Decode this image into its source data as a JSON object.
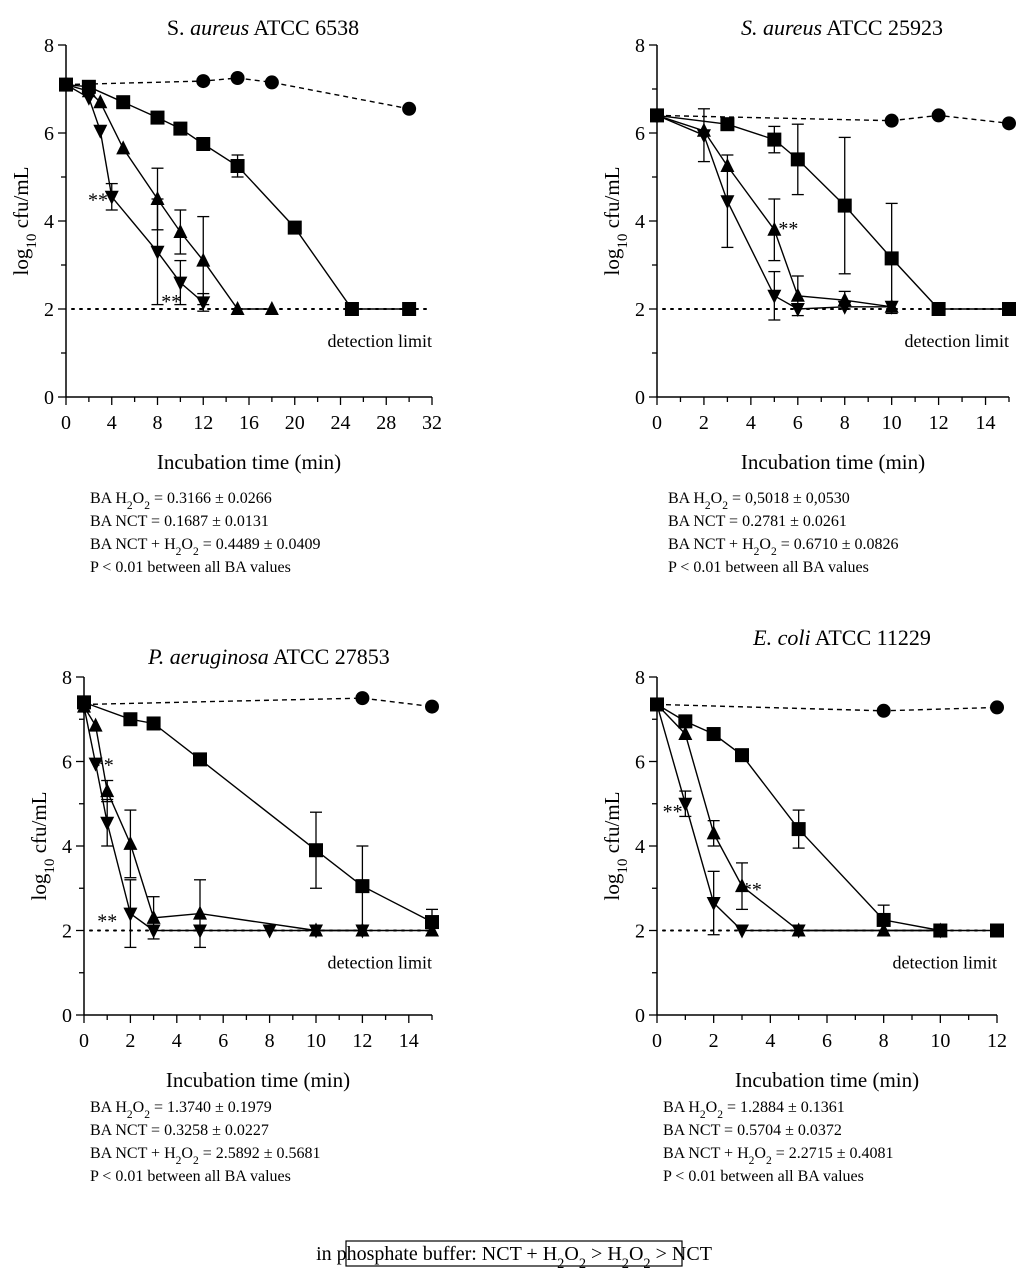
{
  "chart_data": [
    {
      "type": "line",
      "title_parts": [
        {
          "text": "S. ",
          "italic": false
        },
        {
          "text": "aureus",
          "italic": true
        },
        {
          "text": " ATCC 6538",
          "italic": false
        }
      ],
      "xlabel": "Incubation time (min)",
      "ylabel": "log10 cfu/mL",
      "xlim": [
        0,
        32
      ],
      "ylim": [
        0,
        8
      ],
      "xticks": [
        0,
        4,
        8,
        12,
        16,
        20,
        24,
        28,
        32
      ],
      "yticks": [
        0,
        2,
        4,
        6,
        8
      ],
      "detection_limit": 2,
      "detection_label": "detection limit",
      "series": [
        {
          "marker": "circle",
          "dashed": true,
          "points": [
            {
              "x": 0,
              "y": 7.1
            },
            {
              "x": 12,
              "y": 7.18
            },
            {
              "x": 15,
              "y": 7.25
            },
            {
              "x": 18,
              "y": 7.15
            },
            {
              "x": 30,
              "y": 6.55
            }
          ]
        },
        {
          "marker": "square",
          "dashed": false,
          "points": [
            {
              "x": 0,
              "y": 7.1
            },
            {
              "x": 2,
              "y": 7.05
            },
            {
              "x": 5,
              "y": 6.7
            },
            {
              "x": 8,
              "y": 6.35
            },
            {
              "x": 10,
              "y": 6.1
            },
            {
              "x": 12,
              "y": 5.75
            },
            {
              "x": 15,
              "y": 5.25,
              "err": 0.25
            },
            {
              "x": 20,
              "y": 3.85
            },
            {
              "x": 25,
              "y": 2.0
            },
            {
              "x": 30,
              "y": 2.0
            }
          ]
        },
        {
          "marker": "triangle-up",
          "dashed": false,
          "points": [
            {
              "x": 0,
              "y": 7.1
            },
            {
              "x": 2,
              "y": 6.95
            },
            {
              "x": 3,
              "y": 6.7
            },
            {
              "x": 5,
              "y": 5.65
            },
            {
              "x": 8,
              "y": 4.5,
              "err": 0.7
            },
            {
              "x": 10,
              "y": 3.75,
              "err": 0.5
            },
            {
              "x": 12,
              "y": 3.1,
              "err": 1.0
            },
            {
              "x": 15,
              "y": 2.0
            },
            {
              "x": 18,
              "y": 2.0
            }
          ]
        },
        {
          "marker": "triangle-down",
          "dashed": false,
          "points": [
            {
              "x": 0,
              "y": 7.1
            },
            {
              "x": 2,
              "y": 6.8
            },
            {
              "x": 3,
              "y": 6.05
            },
            {
              "x": 4,
              "y": 4.55,
              "err": 0.3
            },
            {
              "x": 8,
              "y": 3.3,
              "err": 1.2
            },
            {
              "x": 10,
              "y": 2.6,
              "err": 0.5
            },
            {
              "x": 12,
              "y": 2.15,
              "err": 0.2
            }
          ]
        }
      ],
      "annotations": [
        {
          "text": "**",
          "x": 2.8,
          "y": 4.6
        },
        {
          "text": "**",
          "x": 9.2,
          "y": 2.3
        }
      ],
      "stats": [
        {
          "label": "BA H2O2",
          "value": "0.3166 ± 0.0266"
        },
        {
          "label": "BA NCT",
          "value": "0.1687 ± 0.0131"
        },
        {
          "label": "BA NCT + H2O2",
          "value": "0.4489 ± 0.0409"
        },
        {
          "label": "P < 0.01 between all BA values",
          "value": ""
        }
      ]
    },
    {
      "type": "line",
      "title_parts": [
        {
          "text": "S. aureus",
          "italic": true
        },
        {
          "text": " ATCC 25923",
          "italic": false
        }
      ],
      "xlabel": "Incubation time (min)",
      "ylabel": "log10 cfu/mL",
      "xlim": [
        0,
        15
      ],
      "ylim": [
        0,
        8
      ],
      "xticks": [
        0,
        2,
        4,
        6,
        8,
        10,
        12,
        14
      ],
      "yticks": [
        0,
        2,
        4,
        6,
        8
      ],
      "detection_limit": 2,
      "detection_label": "detection limit",
      "series": [
        {
          "marker": "circle",
          "dashed": true,
          "points": [
            {
              "x": 0,
              "y": 6.4
            },
            {
              "x": 10,
              "y": 6.28
            },
            {
              "x": 12,
              "y": 6.4
            },
            {
              "x": 15,
              "y": 6.22
            }
          ]
        },
        {
          "marker": "square",
          "dashed": false,
          "points": [
            {
              "x": 0,
              "y": 6.4
            },
            {
              "x": 3,
              "y": 6.2
            },
            {
              "x": 5,
              "y": 5.85,
              "err": 0.3
            },
            {
              "x": 6,
              "y": 5.4,
              "err": 0.8
            },
            {
              "x": 8,
              "y": 4.35,
              "err": 1.55
            },
            {
              "x": 10,
              "y": 3.15,
              "err": 1.25
            },
            {
              "x": 12,
              "y": 2.0
            },
            {
              "x": 15,
              "y": 2.0
            }
          ]
        },
        {
          "marker": "triangle-up",
          "dashed": false,
          "points": [
            {
              "x": 0,
              "y": 6.4
            },
            {
              "x": 2,
              "y": 6.05
            },
            {
              "x": 3,
              "y": 5.25
            },
            {
              "x": 5,
              "y": 3.8,
              "err": 0.7
            },
            {
              "x": 6,
              "y": 2.3,
              "err": 0.45
            },
            {
              "x": 8,
              "y": 2.2,
              "err": 0.2
            },
            {
              "x": 10,
              "y": 2.05
            }
          ]
        },
        {
          "marker": "triangle-down",
          "dashed": false,
          "points": [
            {
              "x": 0,
              "y": 6.4
            },
            {
              "x": 2,
              "y": 5.95,
              "err": 0.6
            },
            {
              "x": 3,
              "y": 4.45,
              "err": 1.05
            },
            {
              "x": 5,
              "y": 2.3,
              "err": 0.55
            },
            {
              "x": 6,
              "y": 2.0
            },
            {
              "x": 8,
              "y": 2.05
            },
            {
              "x": 10,
              "y": 2.05
            }
          ]
        }
      ],
      "annotations": [
        {
          "text": "**",
          "x": 5.6,
          "y": 3.95
        }
      ],
      "stats": [
        {
          "label": "BA H2O2",
          "value": "0,5018 ± 0,0530"
        },
        {
          "label": "BA NCT",
          "value": "0.2781 ± 0.0261"
        },
        {
          "label": "BA NCT + H2O2",
          "value": "0.6710 ± 0.0826"
        },
        {
          "label": "P < 0.01 between all BA values",
          "value": ""
        }
      ]
    },
    {
      "type": "line",
      "title_parts": [
        {
          "text": "P. aeruginosa",
          "italic": true
        },
        {
          "text": " ATCC 27853",
          "italic": false
        }
      ],
      "xlabel": "Incubation time (min)",
      "ylabel": "log10 cfu/mL",
      "xlim": [
        0,
        15
      ],
      "ylim": [
        0,
        8
      ],
      "xticks": [
        0,
        2,
        4,
        6,
        8,
        10,
        12,
        14
      ],
      "yticks": [
        0,
        2,
        4,
        6,
        8
      ],
      "detection_limit": 2,
      "detection_label": "detection limit",
      "series": [
        {
          "marker": "circle",
          "dashed": true,
          "points": [
            {
              "x": 0,
              "y": 7.35
            },
            {
              "x": 12,
              "y": 7.5
            },
            {
              "x": 15,
              "y": 7.3
            }
          ]
        },
        {
          "marker": "square",
          "dashed": false,
          "points": [
            {
              "x": 0,
              "y": 7.4
            },
            {
              "x": 2,
              "y": 7.0
            },
            {
              "x": 3,
              "y": 6.9
            },
            {
              "x": 5,
              "y": 6.05
            },
            {
              "x": 10,
              "y": 3.9,
              "err": 0.9
            },
            {
              "x": 12,
              "y": 3.05,
              "err": 0.95
            },
            {
              "x": 15,
              "y": 2.2,
              "err": 0.3
            }
          ]
        },
        {
          "marker": "triangle-up",
          "dashed": false,
          "points": [
            {
              "x": 0,
              "y": 7.3
            },
            {
              "x": 0.5,
              "y": 6.85
            },
            {
              "x": 1,
              "y": 5.3,
              "err": 0.25
            },
            {
              "x": 2,
              "y": 4.05,
              "err": 0.8
            },
            {
              "x": 3,
              "y": 2.3,
              "err": 0.5
            },
            {
              "x": 5,
              "y": 2.4,
              "err": 0.8
            },
            {
              "x": 10,
              "y": 2.0
            },
            {
              "x": 12,
              "y": 2.0
            },
            {
              "x": 15,
              "y": 2.0
            }
          ]
        },
        {
          "marker": "triangle-down",
          "dashed": false,
          "points": [
            {
              "x": 0,
              "y": 7.3
            },
            {
              "x": 0.5,
              "y": 5.95
            },
            {
              "x": 1,
              "y": 4.55,
              "err": 0.55
            },
            {
              "x": 2,
              "y": 2.4,
              "err": 0.8
            },
            {
              "x": 3,
              "y": 2.0
            },
            {
              "x": 5,
              "y": 2.0
            },
            {
              "x": 8,
              "y": 2.0
            },
            {
              "x": 10,
              "y": 2.0
            },
            {
              "x": 12,
              "y": 2.0
            }
          ]
        }
      ],
      "annotations": [
        {
          "text": "**",
          "x": 0.85,
          "y": 6.05
        },
        {
          "text": "**",
          "x": 1.0,
          "y": 2.35
        }
      ],
      "stats": [
        {
          "label": "BA H2O2",
          "value": "1.3740 ± 0.1979"
        },
        {
          "label": "BA NCT",
          "value": "0.3258 ± 0.0227"
        },
        {
          "label": "BA NCT + H2O2",
          "value": "2.5892 ± 0.5681"
        },
        {
          "label": "P < 0.01 between all BA values",
          "value": ""
        }
      ]
    },
    {
      "type": "line",
      "title_parts": [
        {
          "text": "E. coli",
          "italic": true
        },
        {
          "text": " ATCC 11229",
          "italic": false
        }
      ],
      "xlabel": "Incubation time (min)",
      "ylabel": "log10 cfu/mL",
      "xlim": [
        0,
        12
      ],
      "ylim": [
        0,
        8
      ],
      "xticks": [
        0,
        2,
        4,
        6,
        8,
        10,
        12
      ],
      "yticks": [
        0,
        2,
        4,
        6,
        8
      ],
      "detection_limit": 2,
      "detection_label": "detection limit",
      "series": [
        {
          "marker": "circle",
          "dashed": true,
          "points": [
            {
              "x": 0,
              "y": 7.35
            },
            {
              "x": 8,
              "y": 7.2
            },
            {
              "x": 12,
              "y": 7.28
            }
          ]
        },
        {
          "marker": "square",
          "dashed": false,
          "points": [
            {
              "x": 0,
              "y": 7.35
            },
            {
              "x": 1,
              "y": 6.95
            },
            {
              "x": 2,
              "y": 6.65
            },
            {
              "x": 3,
              "y": 6.15
            },
            {
              "x": 5,
              "y": 4.4,
              "err": 0.45
            },
            {
              "x": 8,
              "y": 2.25,
              "err": 0.35
            },
            {
              "x": 10,
              "y": 2.0
            },
            {
              "x": 12,
              "y": 2.0
            }
          ]
        },
        {
          "marker": "triangle-up",
          "dashed": false,
          "points": [
            {
              "x": 0,
              "y": 7.35
            },
            {
              "x": 1,
              "y": 6.65
            },
            {
              "x": 2,
              "y": 4.3,
              "err": 0.3
            },
            {
              "x": 3,
              "y": 3.05,
              "err": 0.55
            },
            {
              "x": 5,
              "y": 2.0
            },
            {
              "x": 8,
              "y": 2.0
            },
            {
              "x": 10,
              "y": 2.0
            }
          ]
        },
        {
          "marker": "triangle-down",
          "dashed": false,
          "points": [
            {
              "x": 0,
              "y": 7.35
            },
            {
              "x": 1,
              "y": 5.0,
              "err": 0.3
            },
            {
              "x": 2,
              "y": 2.65,
              "err": 0.75
            },
            {
              "x": 3,
              "y": 2.0
            },
            {
              "x": 5,
              "y": 2.0
            },
            {
              "x": 10,
              "y": 2.0
            }
          ]
        }
      ],
      "annotations": [
        {
          "text": "**",
          "x": 0.55,
          "y": 4.95
        },
        {
          "text": "**",
          "x": 3.35,
          "y": 3.1
        }
      ],
      "stats": [
        {
          "label": "BA H2O2",
          "value": "1.2884 ± 0.1361"
        },
        {
          "label": "BA NCT",
          "value": "0.5704 ± 0.0372"
        },
        {
          "label": "BA NCT + H2O2",
          "value": "2.2715 ± 0.4081"
        },
        {
          "label": "P < 0.01 between all BA values",
          "value": ""
        }
      ]
    }
  ],
  "footer": "in phosphate buffer: NCT + H2O2 > H2O2 > NCT"
}
